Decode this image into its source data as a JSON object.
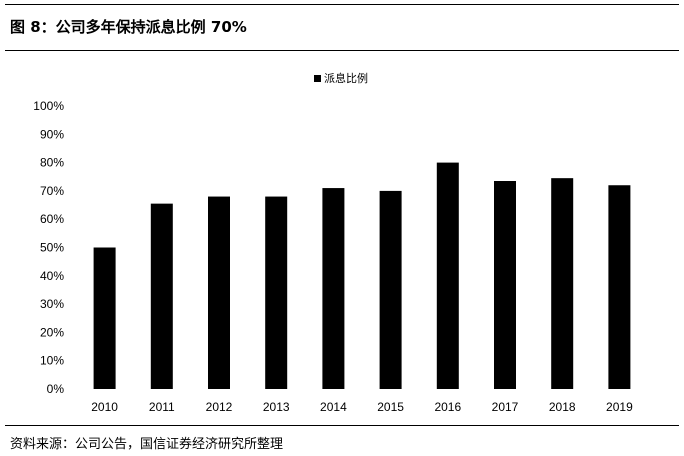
{
  "figure_title": "图 8：公司多年保持派息比例 70%",
  "source_note": "资料来源：公司公告，国信证券经济研究所整理",
  "chart_data": {
    "type": "bar",
    "title": "",
    "legend": {
      "entries": [
        "派息比例"
      ],
      "placement": "top-center"
    },
    "categories": [
      "2010",
      "2011",
      "2012",
      "2013",
      "2014",
      "2015",
      "2016",
      "2017",
      "2018",
      "2019"
    ],
    "series": [
      {
        "name": "派息比例",
        "values": [
          50,
          65.5,
          68,
          68,
          71,
          70,
          80,
          73.5,
          74.5,
          72
        ],
        "color": "#000000"
      }
    ],
    "ylim": [
      0,
      100
    ],
    "yticks": [
      "0%",
      "10%",
      "20%",
      "30%",
      "40%",
      "50%",
      "60%",
      "70%",
      "80%",
      "90%",
      "100%"
    ],
    "xlabel": "",
    "ylabel": "",
    "grid": false
  }
}
